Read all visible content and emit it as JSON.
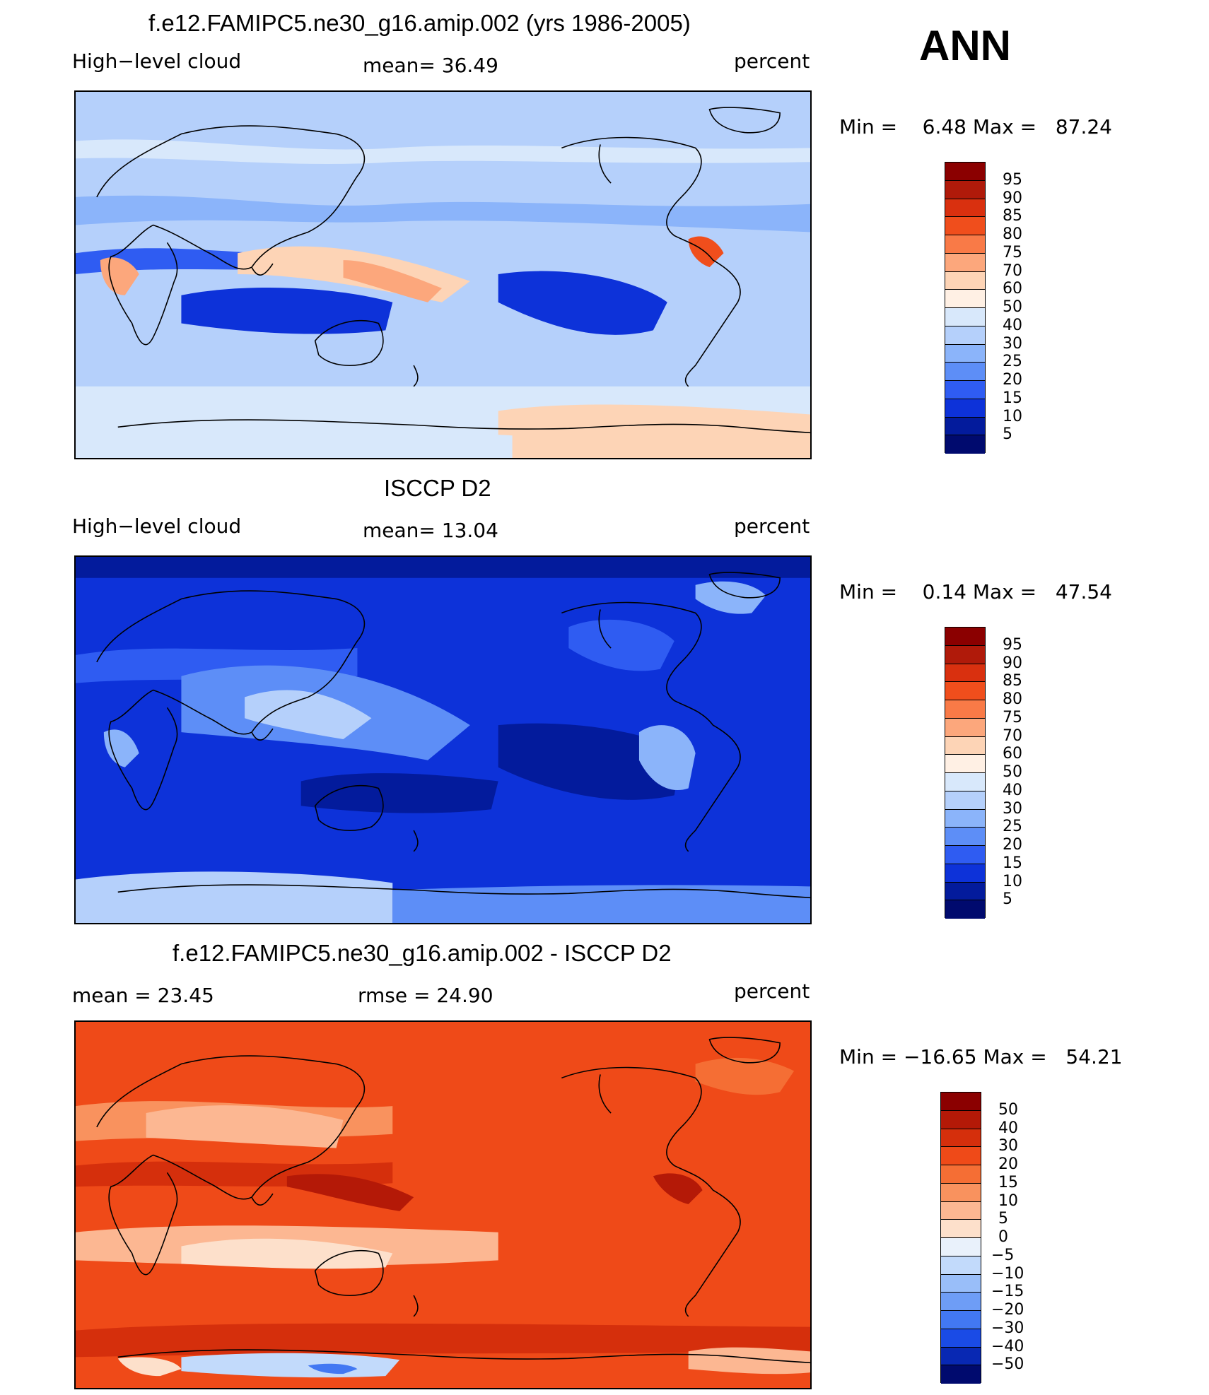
{
  "season": "ANN",
  "panels": [
    {
      "title": "f.e12.FAMIPC5.ne30_g16.amip.002 (yrs 1986-2005)",
      "left_label": "High−level cloud",
      "mid_label": "mean=   36.49",
      "right_label": "percent",
      "minmax": "Min =    6.48 Max =   87.24",
      "palette": "abs",
      "levels": [
        "95",
        "90",
        "85",
        "80",
        "75",
        "70",
        "60",
        "50",
        "40",
        "30",
        "25",
        "20",
        "15",
        "10",
        "5"
      ]
    },
    {
      "title": "ISCCP D2",
      "left_label": "High−level cloud",
      "mid_label": "mean=   13.04",
      "right_label": "percent",
      "minmax": "Min =    0.14 Max =   47.54",
      "palette": "abs",
      "levels": [
        "95",
        "90",
        "85",
        "80",
        "75",
        "70",
        "60",
        "50",
        "40",
        "30",
        "25",
        "20",
        "15",
        "10",
        "5"
      ]
    },
    {
      "title": "f.e12.FAMIPC5.ne30_g16.amip.002 - ISCCP D2",
      "left_label": "mean =   23.45",
      "mid_label": "rmse =   24.90",
      "right_label": "percent",
      "minmax": "Min = −16.65 Max =   54.21",
      "palette": "diff",
      "levels": [
        "50",
        "40",
        "30",
        "20",
        "15",
        "10",
        "5",
        "0",
        "−5",
        "−10",
        "−15",
        "−20",
        "−30",
        "−40",
        "−50"
      ]
    }
  ],
  "colors": {
    "abs": [
      "#8b0000",
      "#b01a0a",
      "#d9300f",
      "#f04e1c",
      "#f97a47",
      "#fca77c",
      "#fdd4b6",
      "#fff0e4",
      "#d8e8fb",
      "#b5d0fb",
      "#8bb4fa",
      "#5d8ef7",
      "#2f5cf2",
      "#0d32d9",
      "#031b9c",
      "#000a6e"
    ],
    "diff": [
      "#8b0000",
      "#b41907",
      "#d52f0c",
      "#ef4a18",
      "#f56e34",
      "#f9925e",
      "#fcb792",
      "#fde0cb",
      "#e9f1fb",
      "#c2dafb",
      "#99bef9",
      "#6e9df6",
      "#4278f3",
      "#1a4be6",
      "#0828b3",
      "#000a6e"
    ]
  }
}
